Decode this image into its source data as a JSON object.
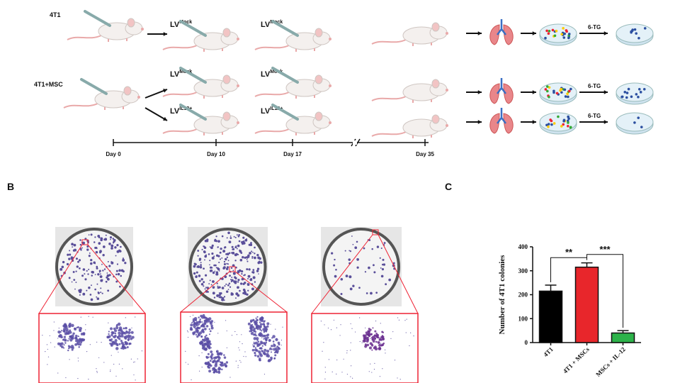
{
  "schematic": {
    "groups": [
      "4T1",
      "4T1+MSC"
    ],
    "labels": [
      {
        "text": "LV",
        "sup": "Mock"
      },
      {
        "text": "LV",
        "sup": "Mock"
      },
      {
        "text": "LV",
        "sup": "Mock"
      },
      {
        "text": "LV",
        "sup": "Mock"
      },
      {
        "text": "LV",
        "sup": "IL12+"
      },
      {
        "text": "LV",
        "sup": "IL12+"
      }
    ],
    "selection": [
      "6-TG",
      "6-TG",
      "6-TG"
    ],
    "timeline": [
      "Day 0",
      "Day 10",
      "Day 17",
      "Day 35"
    ]
  },
  "panels": [
    "B",
    "C"
  ],
  "chart_data": {
    "type": "bar",
    "y_label": "Number of 4T1 colonies",
    "categories": [
      "4T1",
      "4T1 + MSCs",
      "MSCs + IL-12"
    ],
    "values": [
      215,
      315,
      40
    ],
    "errors": [
      25,
      18,
      10
    ],
    "colors": [
      "#000000",
      "#e8262b",
      "#2db34a"
    ],
    "annotations": [
      "**",
      "***"
    ],
    "ylim": [
      0,
      400
    ],
    "yticks": [
      0,
      100,
      200,
      300,
      400
    ]
  }
}
